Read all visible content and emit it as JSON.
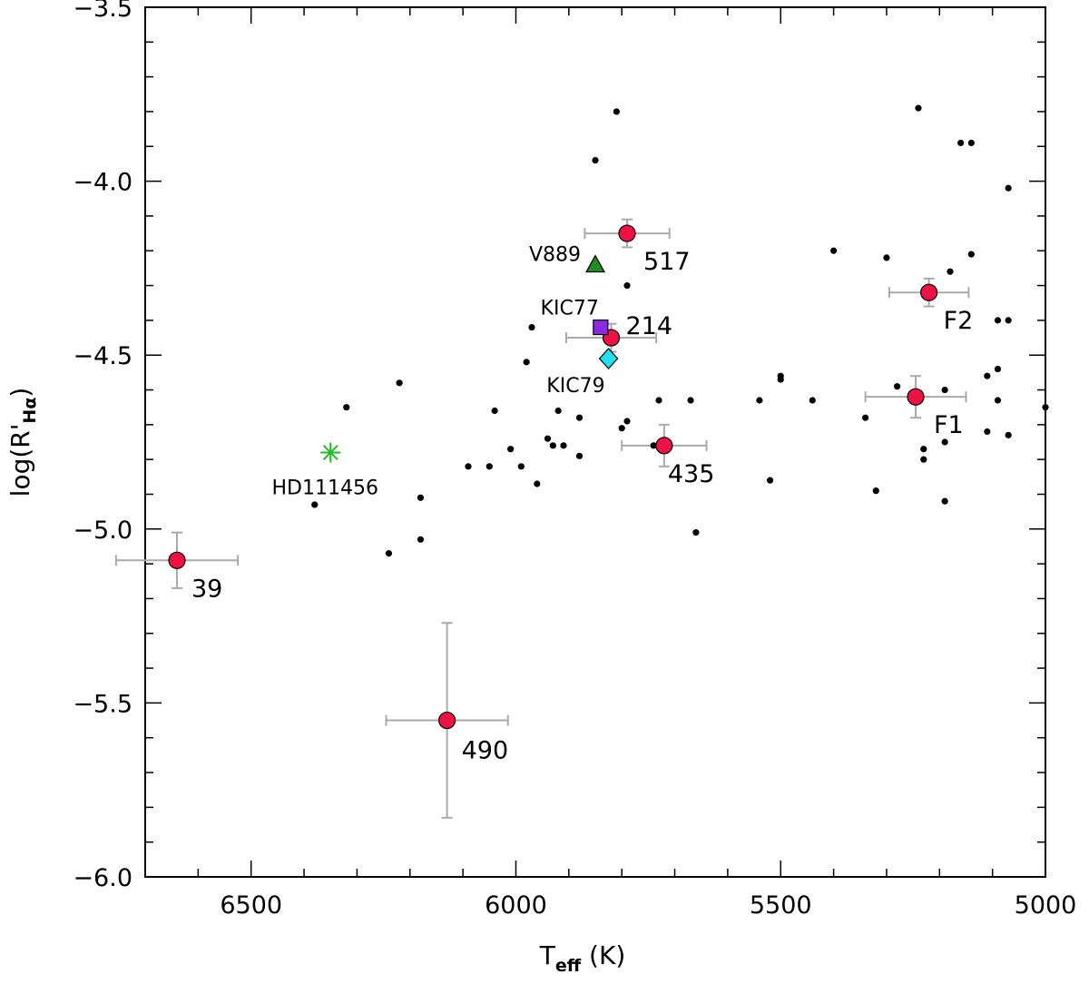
{
  "chart_data": {
    "type": "scatter",
    "title": "",
    "xlabel": {
      "main": "T",
      "sub": "eff",
      "unit": "(K)"
    },
    "ylabel": {
      "main": "log(R'",
      "sub": "Hα",
      "close": ")"
    },
    "xlim": [
      6700,
      5000
    ],
    "ylim": [
      -6.0,
      -3.5
    ],
    "x_ticks": [
      6500,
      6000,
      5500,
      5000
    ],
    "y_ticks": [
      -3.5,
      -4.0,
      -4.5,
      -5.0,
      -5.5,
      -6.0
    ],
    "x_tick_labels": [
      "6500",
      "6000",
      "5500",
      "5000"
    ],
    "y_tick_labels": [
      "−3.5",
      "−4.0",
      "−4.5",
      "−5.0",
      "−5.5",
      "−6.0"
    ],
    "colors": {
      "comparison": "#000000",
      "target_fill": "#ee1144",
      "errorbar": "#aaaaaa",
      "v889": "#1e8c1e",
      "kic77": "#8a2be2",
      "kic79": "#22e0f0",
      "hd111456": "#22bb22"
    },
    "comparison_stars": [
      {
        "x": 5810,
        "y": -3.8
      },
      {
        "x": 5850,
        "y": -3.94
      },
      {
        "x": 5240,
        "y": -3.79
      },
      {
        "x": 5160,
        "y": -3.89
      },
      {
        "x": 5140,
        "y": -3.89
      },
      {
        "x": 5070,
        "y": -4.02
      },
      {
        "x": 5790,
        "y": -4.3
      },
      {
        "x": 5300,
        "y": -4.22
      },
      {
        "x": 5400,
        "y": -4.2
      },
      {
        "x": 5140,
        "y": -4.21
      },
      {
        "x": 5180,
        "y": -4.26
      },
      {
        "x": 5090,
        "y": -4.4
      },
      {
        "x": 5070,
        "y": -4.4
      },
      {
        "x": 5970,
        "y": -4.42
      },
      {
        "x": 5980,
        "y": -4.52
      },
      {
        "x": 6220,
        "y": -4.58
      },
      {
        "x": 6320,
        "y": -4.65
      },
      {
        "x": 6040,
        "y": -4.66
      },
      {
        "x": 5920,
        "y": -4.66
      },
      {
        "x": 5880,
        "y": -4.68
      },
      {
        "x": 5940,
        "y": -4.74
      },
      {
        "x": 5930,
        "y": -4.76
      },
      {
        "x": 5910,
        "y": -4.76
      },
      {
        "x": 5880,
        "y": -4.79
      },
      {
        "x": 6010,
        "y": -4.77
      },
      {
        "x": 5990,
        "y": -4.82
      },
      {
        "x": 5960,
        "y": -4.87
      },
      {
        "x": 6090,
        "y": -4.82
      },
      {
        "x": 6050,
        "y": -4.82
      },
      {
        "x": 6180,
        "y": -4.91
      },
      {
        "x": 6380,
        "y": -4.93
      },
      {
        "x": 6240,
        "y": -5.07
      },
      {
        "x": 6180,
        "y": -5.03
      },
      {
        "x": 5740,
        "y": -4.76
      },
      {
        "x": 5730,
        "y": -4.76
      },
      {
        "x": 5730,
        "y": -4.63
      },
      {
        "x": 5670,
        "y": -4.63
      },
      {
        "x": 5540,
        "y": -4.63
      },
      {
        "x": 5440,
        "y": -4.63
      },
      {
        "x": 5500,
        "y": -4.56
      },
      {
        "x": 5500,
        "y": -4.57
      },
      {
        "x": 5790,
        "y": -4.69
      },
      {
        "x": 5800,
        "y": -4.71
      },
      {
        "x": 5520,
        "y": -4.86
      },
      {
        "x": 5660,
        "y": -5.01
      },
      {
        "x": 5340,
        "y": -4.68
      },
      {
        "x": 5280,
        "y": -4.59
      },
      {
        "x": 5320,
        "y": -4.89
      },
      {
        "x": 5230,
        "y": -4.77
      },
      {
        "x": 5230,
        "y": -4.8
      },
      {
        "x": 5190,
        "y": -4.6
      },
      {
        "x": 5190,
        "y": -4.75
      },
      {
        "x": 5190,
        "y": -4.92
      },
      {
        "x": 5110,
        "y": -4.56
      },
      {
        "x": 5090,
        "y": -4.54
      },
      {
        "x": 5090,
        "y": -4.63
      },
      {
        "x": 5110,
        "y": -4.72
      },
      {
        "x": 5070,
        "y": -4.73
      },
      {
        "x": 5000,
        "y": -4.65
      }
    ],
    "targets": [
      {
        "id": "517",
        "label": "517",
        "x": 5790,
        "y": -4.15,
        "xerr": 80,
        "yerr": 0.04
      },
      {
        "id": "214",
        "label": "214",
        "x": 5820,
        "y": -4.45,
        "xerr": 85,
        "yerr": 0.04
      },
      {
        "id": "435",
        "label": "435",
        "x": 5720,
        "y": -4.76,
        "xerr": 80,
        "yerr": 0.06
      },
      {
        "id": "39",
        "label": "39",
        "x": 6640,
        "y": -5.09,
        "xerr": 115,
        "yerr": 0.08
      },
      {
        "id": "490",
        "label": "490",
        "x": 6130,
        "y": -5.55,
        "xerr": 115,
        "yerr": 0.28
      },
      {
        "id": "F2",
        "label": "F2",
        "x": 5220,
        "y": -4.32,
        "xerr": 75,
        "yerr": 0.04
      },
      {
        "id": "F1",
        "label": "F1",
        "x": 5245,
        "y": -4.62,
        "xerr": 95,
        "yerr": 0.06
      }
    ],
    "special": [
      {
        "id": "v889",
        "label": "V889",
        "marker": "triangle",
        "x": 5850,
        "y": -4.24
      },
      {
        "id": "kic77",
        "label": "KIC77",
        "marker": "square",
        "x": 5840,
        "y": -4.42
      },
      {
        "id": "kic79",
        "label": "KIC79",
        "marker": "diamond",
        "x": 5825,
        "y": -4.51
      },
      {
        "id": "hd111456",
        "label": "HD111456",
        "marker": "asterisk",
        "x": 6350,
        "y": -4.78
      }
    ]
  }
}
